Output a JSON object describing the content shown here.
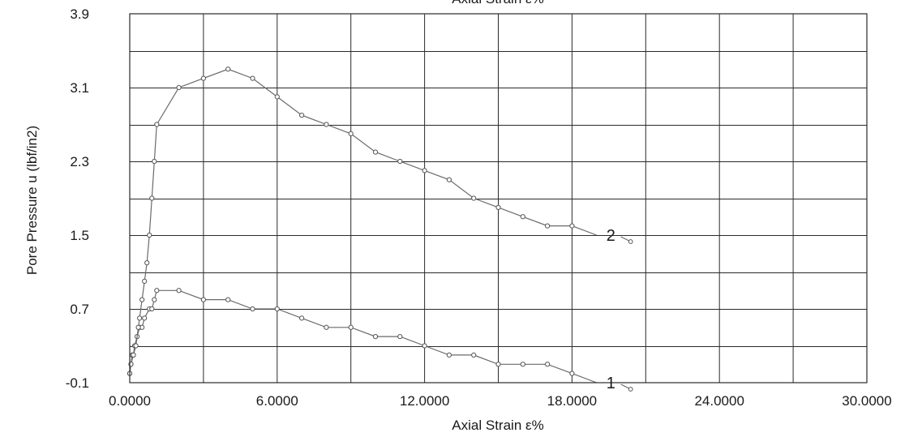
{
  "chart_data": {
    "type": "line",
    "title": "",
    "top_axis_label": "Axial Strain ε%",
    "xlabel": "Axial Strain ε%",
    "ylabel": "Pore Pressure u  (lbf/in2)",
    "xlim": [
      0,
      30
    ],
    "ylim": [
      -0.1,
      3.9
    ],
    "x_ticks": [
      "0.0000",
      "6.0000",
      "12.0000",
      "18.0000",
      "24.0000",
      "30.0000"
    ],
    "y_ticks": [
      "-0.1",
      "0.7",
      "1.5",
      "2.3",
      "3.1",
      "3.9"
    ],
    "x_grid_step": 3,
    "y_grid_step": 0.4,
    "grid": true,
    "series": [
      {
        "name": "1",
        "color": "#6a6a6a",
        "points": [
          [
            0,
            0.0
          ],
          [
            0.05,
            0.1
          ],
          [
            0.1,
            0.2
          ],
          [
            0.15,
            0.2
          ],
          [
            0.2,
            0.3
          ],
          [
            0.3,
            0.4
          ],
          [
            0.4,
            0.5
          ],
          [
            0.5,
            0.5
          ],
          [
            0.6,
            0.6
          ],
          [
            0.8,
            0.7
          ],
          [
            0.9,
            0.7
          ],
          [
            1.0,
            0.8
          ],
          [
            1.1,
            0.9
          ],
          [
            2.0,
            0.9
          ],
          [
            3.0,
            0.8
          ],
          [
            4.0,
            0.8
          ],
          [
            5.0,
            0.7
          ],
          [
            6.0,
            0.7
          ],
          [
            7.0,
            0.6
          ],
          [
            8.0,
            0.5
          ],
          [
            9.0,
            0.5
          ],
          [
            10.0,
            0.4
          ],
          [
            11.0,
            0.4
          ],
          [
            12.0,
            0.3
          ],
          [
            13.0,
            0.2
          ],
          [
            14.0,
            0.2
          ],
          [
            15.0,
            0.1
          ],
          [
            16.0,
            0.1
          ],
          [
            17.0,
            0.1
          ],
          [
            18.0,
            0.0
          ]
        ],
        "tail": [
          [
            18.0,
            0.0
          ],
          [
            19.0,
            -0.1
          ]
        ]
      },
      {
        "name": "2",
        "color": "#6a6a6a",
        "points": [
          [
            0,
            0.0
          ],
          [
            0.05,
            0.1
          ],
          [
            0.15,
            0.2
          ],
          [
            0.25,
            0.3
          ],
          [
            0.35,
            0.5
          ],
          [
            0.4,
            0.6
          ],
          [
            0.5,
            0.8
          ],
          [
            0.6,
            1.0
          ],
          [
            0.7,
            1.2
          ],
          [
            0.8,
            1.5
          ],
          [
            0.9,
            1.9
          ],
          [
            1.0,
            2.3
          ],
          [
            1.1,
            2.7
          ],
          [
            2.0,
            3.1
          ],
          [
            3.0,
            3.2
          ],
          [
            4.0,
            3.3
          ],
          [
            5.0,
            3.2
          ],
          [
            6.0,
            3.0
          ],
          [
            7.0,
            2.8
          ],
          [
            8.0,
            2.7
          ],
          [
            9.0,
            2.6
          ],
          [
            10.0,
            2.4
          ],
          [
            11.0,
            2.3
          ],
          [
            12.0,
            2.2
          ],
          [
            13.0,
            2.1
          ],
          [
            14.0,
            1.9
          ],
          [
            15.0,
            1.8
          ],
          [
            16.0,
            1.7
          ],
          [
            17.0,
            1.6
          ],
          [
            18.0,
            1.6
          ]
        ],
        "tail": [
          [
            18.0,
            1.6
          ],
          [
            19.0,
            1.5
          ]
        ]
      }
    ]
  }
}
